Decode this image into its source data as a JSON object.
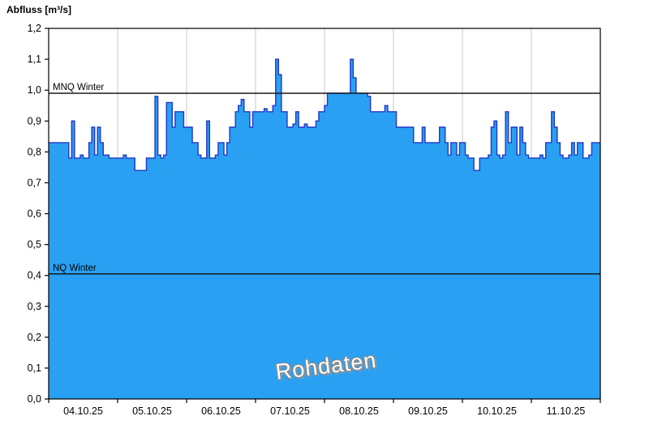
{
  "title": "Abfluss [m³/s]",
  "watermark": "Rohdaten",
  "chart_data": {
    "type": "area",
    "step": true,
    "title": "Abfluss [m³/s]",
    "ylabel": "Abfluss [m³/s]",
    "xlabel": "",
    "ylim": [
      0.0,
      1.2
    ],
    "grid": "vertical",
    "x_labels": [
      "04.10.25",
      "05.10.25",
      "06.10.25",
      "07.10.25",
      "08.10.25",
      "09.10.25",
      "10.10.25",
      "11.10.25"
    ],
    "y_tick_values": [
      0.0,
      0.1,
      0.2,
      0.3,
      0.4,
      0.5,
      0.6,
      0.7,
      0.8,
      0.9,
      1.0,
      1.1,
      1.2
    ],
    "y_tick_labels": [
      "0,0",
      "0,1",
      "0,2",
      "0,3",
      "0,4",
      "0,5",
      "0,6",
      "0,7",
      "0,8",
      "0,9",
      "1,0",
      "1,1",
      "1,2"
    ],
    "points_per_day": 24,
    "series_name": "Rohdaten",
    "values": [
      0.83,
      0.83,
      0.83,
      0.83,
      0.83,
      0.83,
      0.83,
      0.78,
      0.9,
      0.78,
      0.78,
      0.79,
      0.78,
      0.78,
      0.83,
      0.88,
      0.79,
      0.88,
      0.83,
      0.79,
      0.79,
      0.78,
      0.78,
      0.78,
      0.78,
      0.78,
      0.79,
      0.78,
      0.78,
      0.78,
      0.74,
      0.74,
      0.74,
      0.74,
      0.78,
      0.78,
      0.78,
      0.98,
      0.79,
      0.78,
      0.79,
      0.96,
      0.96,
      0.88,
      0.93,
      0.93,
      0.93,
      0.88,
      0.88,
      0.88,
      0.83,
      0.83,
      0.79,
      0.78,
      0.78,
      0.9,
      0.78,
      0.78,
      0.79,
      0.83,
      0.83,
      0.79,
      0.83,
      0.88,
      0.88,
      0.93,
      0.95,
      0.97,
      0.93,
      0.93,
      0.88,
      0.93,
      0.93,
      0.93,
      0.93,
      0.94,
      0.93,
      0.93,
      0.95,
      1.1,
      1.05,
      0.93,
      0.93,
      0.88,
      0.88,
      0.89,
      0.93,
      0.88,
      0.88,
      0.89,
      0.88,
      0.88,
      0.88,
      0.9,
      0.93,
      0.93,
      0.95,
      0.99,
      0.99,
      0.99,
      0.99,
      0.99,
      0.99,
      0.99,
      0.99,
      1.1,
      1.04,
      0.99,
      0.99,
      0.99,
      0.99,
      0.98,
      0.93,
      0.93,
      0.93,
      0.93,
      0.93,
      0.95,
      0.93,
      0.93,
      0.93,
      0.88,
      0.88,
      0.88,
      0.88,
      0.88,
      0.88,
      0.83,
      0.83,
      0.83,
      0.88,
      0.83,
      0.83,
      0.83,
      0.83,
      0.83,
      0.88,
      0.88,
      0.83,
      0.79,
      0.83,
      0.83,
      0.79,
      0.83,
      0.83,
      0.79,
      0.78,
      0.78,
      0.74,
      0.74,
      0.78,
      0.78,
      0.78,
      0.79,
      0.88,
      0.9,
      0.79,
      0.78,
      0.79,
      0.93,
      0.83,
      0.88,
      0.88,
      0.79,
      0.88,
      0.83,
      0.79,
      0.78,
      0.78,
      0.78,
      0.78,
      0.79,
      0.78,
      0.83,
      0.83,
      0.93,
      0.88,
      0.83,
      0.79,
      0.78,
      0.78,
      0.79,
      0.83,
      0.79,
      0.83,
      0.83,
      0.78,
      0.78,
      0.79,
      0.83,
      0.83,
      0.83
    ],
    "reference_lines": [
      {
        "name": "MNQ Winter",
        "value": 0.99
      },
      {
        "name": "NQ Winter",
        "value": 0.405
      }
    ],
    "colors": {
      "fill": "#29A0F2",
      "stroke": "#2238C8",
      "grid": "#c9c9c9",
      "axis": "#000000",
      "reference": "#1a1a1a",
      "text": "#000000"
    },
    "legend": "none"
  }
}
